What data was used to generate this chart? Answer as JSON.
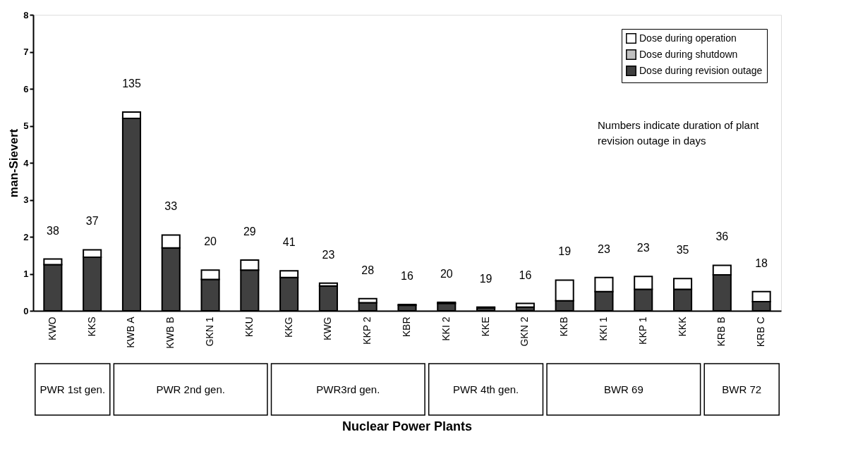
{
  "chart_data": {
    "type": "bar",
    "stacked": true,
    "ylabel": "man-Sievert",
    "categories": [
      "KWO",
      "KKS",
      "KWB A",
      "KWB B",
      "GKN 1",
      "KKU",
      "KKG",
      "KWG",
      "KKP 2",
      "KBR",
      "KKI 2",
      "KKE",
      "GKN 2",
      "KKB",
      "KKI 1",
      "KKP 1",
      "KKK",
      "KRB B",
      "KRB C"
    ],
    "series": [
      {
        "name": "Dose during revision outage",
        "color": "#404040",
        "values": [
          1.25,
          1.45,
          5.2,
          1.7,
          0.85,
          1.1,
          0.9,
          0.67,
          0.22,
          0.15,
          0.2,
          0.08,
          0.1,
          0.27,
          0.52,
          0.58,
          0.58,
          0.97,
          0.25
        ]
      },
      {
        "name": "Dose during shutdown",
        "color": "#c0c0c0",
        "values": [
          null,
          null,
          null,
          null,
          null,
          null,
          null,
          null,
          null,
          null,
          null,
          null,
          null,
          null,
          null,
          null,
          null,
          null,
          null
        ]
      },
      {
        "name": "Dose during operation",
        "color": "#ffffff",
        "values": [
          0.15,
          0.2,
          0.17,
          0.35,
          0.25,
          0.27,
          0.18,
          0.08,
          0.11,
          0.02,
          0.03,
          0.02,
          0.1,
          0.56,
          0.38,
          0.35,
          0.29,
          0.26,
          0.27
        ]
      }
    ],
    "ylim": [
      0,
      8
    ],
    "yticks": [
      0,
      1,
      2,
      3,
      4,
      5,
      6,
      7,
      8
    ],
    "grid": false,
    "legend": "top right",
    "annotations": [
      "38",
      "37",
      "135",
      "33",
      "20",
      "29",
      "41",
      "23",
      "28",
      "16",
      "20",
      "19",
      "16",
      "19",
      "23",
      "23",
      "35",
      "36",
      "18",
      "Numbers indicate duration of plant revision outage in days",
      "PWR 1st gen.",
      "PWR 2nd gen.",
      "PWR3rd gen.",
      "PWR 4th gen.",
      "BWR 69",
      "BWR 72",
      "Nuclear Power Plants"
    ]
  }
}
